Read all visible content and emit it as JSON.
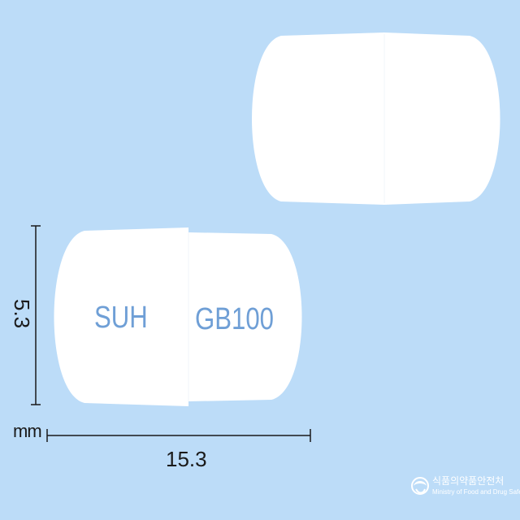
{
  "imprint": {
    "left_text": "SUH",
    "right_text": "GB100"
  },
  "dimensions": {
    "height": "5.3",
    "width": "15.3",
    "unit": "mm"
  },
  "watermark": {
    "korean": "식품의약품안전처",
    "english": "Ministry of Food and Drug Safety"
  },
  "colors": {
    "background": "#bcdcf8",
    "capsule": "#ffffff",
    "imprint": "#6f9fd6"
  }
}
